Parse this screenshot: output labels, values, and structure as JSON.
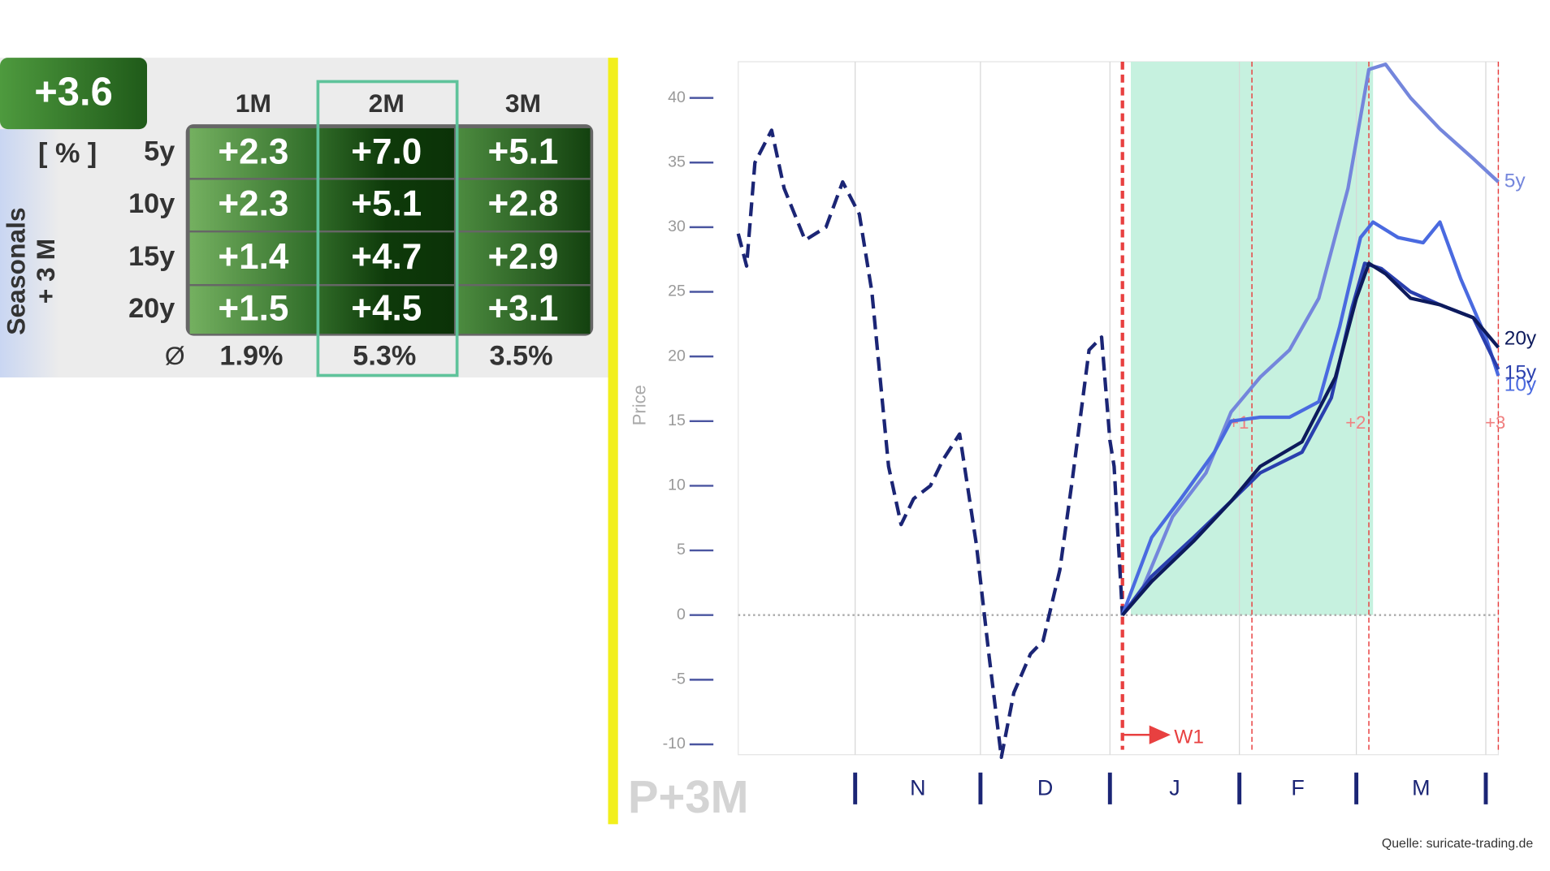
{
  "table": {
    "badge": "+3.6",
    "unit": "[ % ]",
    "side_label": [
      "Seasonals",
      "+ 3 M"
    ],
    "columns": [
      "1M",
      "2M",
      "3M"
    ],
    "rows": [
      {
        "label": "5y",
        "cells": [
          "+2.3",
          "+7.0",
          "+5.1"
        ]
      },
      {
        "label": "10y",
        "cells": [
          "+2.3",
          "+5.1",
          "+2.8"
        ]
      },
      {
        "label": "15y",
        "cells": [
          "+1.4",
          "+4.7",
          "+2.9"
        ]
      },
      {
        "label": "20y",
        "cells": [
          "+1.5",
          "+4.5",
          "+3.1"
        ]
      }
    ],
    "average": {
      "label": "Ø",
      "cells": [
        "1.9%",
        "5.3%",
        "3.5%"
      ]
    }
  },
  "chart_data": {
    "type": "line",
    "y_label": "Price",
    "watermark": "P+3M",
    "source": "Quelle: suricate-trading.de",
    "xlim": [
      3,
      185
    ],
    "ylim": [
      -10.8,
      42.8
    ],
    "yticks": [
      -10,
      -5,
      0,
      5,
      10,
      15,
      20,
      25,
      30,
      35,
      40
    ],
    "xticks": [
      31,
      61,
      92,
      123,
      151,
      182
    ],
    "categories": [
      "N",
      "D",
      "J",
      "F",
      "M"
    ],
    "xgrid": true,
    "shaded": {
      "x": [
        97,
        155
      ],
      "color": "#c6f1df"
    },
    "markers": [
      {
        "x": 95,
        "label": "W1"
      },
      {
        "x": 126,
        "label": "+1"
      },
      {
        "x": 154,
        "label": "+2"
      },
      {
        "x": 185,
        "label": "+3"
      }
    ],
    "history": {
      "color": "#1b2575",
      "x": [
        3,
        5,
        7,
        11,
        14,
        19,
        24,
        28,
        32,
        35,
        39,
        42,
        45,
        49,
        52,
        56,
        60,
        63,
        66,
        69,
        73,
        76,
        80,
        83,
        87,
        90,
        92,
        93,
        95
      ],
      "values": [
        29.5,
        27,
        35,
        37.5,
        33,
        29,
        30,
        33.5,
        31,
        25,
        11.5,
        7,
        9,
        10,
        12,
        14,
        5.5,
        -3,
        -11,
        -6,
        -3,
        -2,
        3.5,
        10.5,
        20.5,
        21.5,
        13.5,
        11.5,
        0
      ]
    },
    "series": [
      {
        "name": "5y",
        "color": "#7486dc",
        "x": [
          95,
          100,
          107,
          115,
          121,
          128,
          135,
          142,
          149,
          154,
          158,
          164,
          171,
          179,
          185
        ],
        "values": [
          0,
          2.2,
          7.6,
          11,
          15.7,
          18.4,
          20.5,
          24.5,
          33,
          42.2,
          42.6,
          40,
          37.6,
          35.3,
          33.5
        ]
      },
      {
        "name": "10y",
        "color": "#4a6ae0",
        "x": [
          95,
          102,
          109,
          117,
          121,
          128,
          135,
          142,
          147,
          152,
          155,
          161,
          167,
          171,
          176,
          182,
          185
        ],
        "values": [
          0,
          6,
          9,
          12.6,
          15,
          15.3,
          15.3,
          16.5,
          22.3,
          29.2,
          30.4,
          29.2,
          28.8,
          30.4,
          26,
          21.5,
          18.5
        ]
      },
      {
        "name": "15y",
        "color": "#2a3fae",
        "x": [
          95,
          102,
          112,
          121,
          128,
          138,
          145,
          150,
          153,
          157,
          164,
          171,
          179,
          185
        ],
        "values": [
          0,
          3,
          6,
          8.8,
          11,
          12.6,
          16.8,
          23.8,
          27.2,
          26.8,
          25,
          24,
          23,
          19
        ]
      },
      {
        "name": "20y",
        "color": "#0d1a5c",
        "x": [
          95,
          102,
          112,
          121,
          128,
          138,
          146,
          151,
          154,
          158,
          164,
          171,
          179,
          185
        ],
        "values": [
          0,
          2.6,
          5.7,
          8.8,
          11.5,
          13.4,
          18.4,
          24.5,
          27.2,
          26.4,
          24.5,
          24,
          23,
          20.7
        ]
      }
    ]
  }
}
